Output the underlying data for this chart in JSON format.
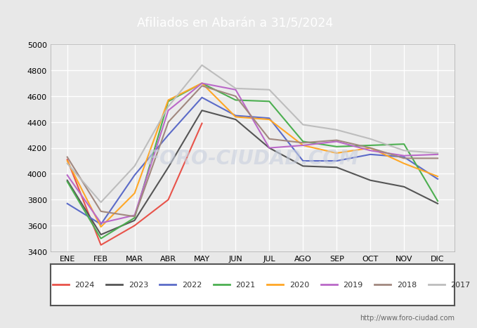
{
  "title": "Afiliados en Abarán a 31/5/2024",
  "header_bg": "#3a6bbf",
  "months": [
    "ENE",
    "FEB",
    "MAR",
    "ABR",
    "MAY",
    "JUN",
    "JUL",
    "AGO",
    "SEP",
    "OCT",
    "NOV",
    "DIC"
  ],
  "series": [
    {
      "year": "2024",
      "color": "#e8534a",
      "data": [
        4110,
        3450,
        3600,
        3800,
        4390,
        null,
        null,
        null,
        null,
        null,
        null,
        null
      ]
    },
    {
      "year": "2023",
      "color": "#555555",
      "data": [
        3950,
        3530,
        3640,
        4050,
        4490,
        4420,
        4200,
        4060,
        4050,
        3950,
        3900,
        3770
      ]
    },
    {
      "year": "2022",
      "color": "#5b6bc8",
      "data": [
        3770,
        3610,
        3990,
        4300,
        4590,
        4450,
        4430,
        4100,
        4100,
        4150,
        4130,
        3960
      ]
    },
    {
      "year": "2021",
      "color": "#4caf50",
      "data": [
        3940,
        3500,
        3660,
        4560,
        4700,
        4570,
        4560,
        4250,
        4210,
        4220,
        4230,
        3790
      ]
    },
    {
      "year": "2020",
      "color": "#ffa726",
      "data": [
        4100,
        3590,
        3850,
        4570,
        4700,
        4440,
        4420,
        4220,
        4160,
        4200,
        4080,
        3980
      ]
    },
    {
      "year": "2019",
      "color": "#ba68c8",
      "data": [
        3990,
        3620,
        3680,
        4490,
        4700,
        4650,
        4200,
        4220,
        4250,
        4180,
        4140,
        4150
      ]
    },
    {
      "year": "2018",
      "color": "#a1887f",
      "data": [
        4130,
        3710,
        3670,
        4400,
        4680,
        4600,
        4270,
        4240,
        4260,
        4200,
        4120,
        4120
      ]
    },
    {
      "year": "2017",
      "color": "#bdbdbd",
      "data": [
        4080,
        3780,
        4060,
        4520,
        4840,
        4660,
        4650,
        4380,
        4340,
        4270,
        4180,
        4160
      ]
    }
  ],
  "ylim": [
    3400,
    5000
  ],
  "yticks": [
    3400,
    3600,
    3800,
    4000,
    4200,
    4400,
    4600,
    4800,
    5000
  ],
  "footer_url": "http://www.foro-ciudad.com",
  "bg_color": "#e8e8e8",
  "plot_bg_color": "#ebebeb",
  "grid_color": "#ffffff",
  "watermark": "FORO-CIUDAD.COM"
}
